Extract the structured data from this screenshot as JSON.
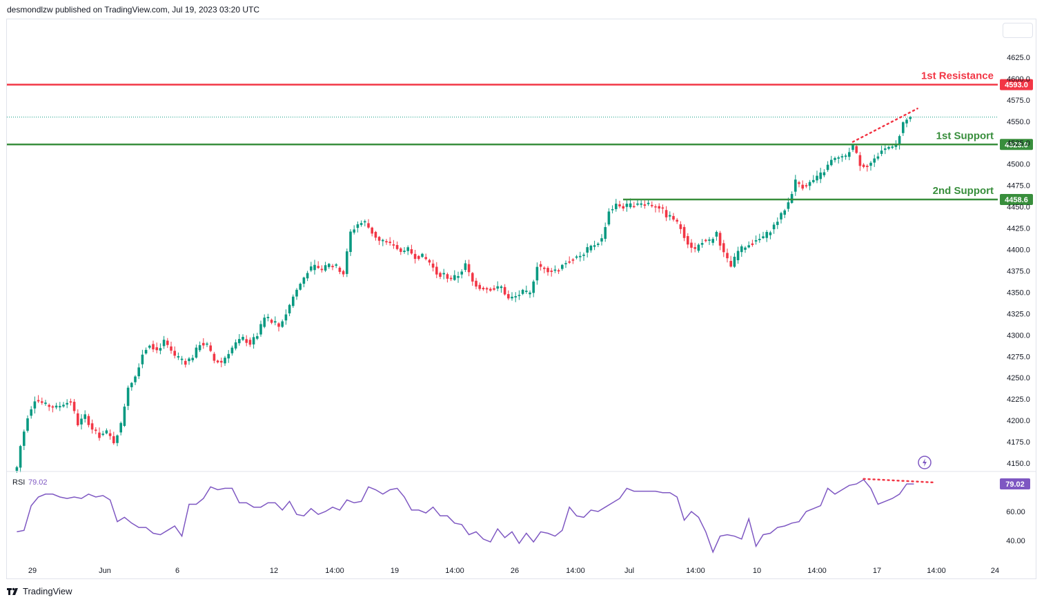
{
  "header": {
    "text": "desmondlzw published on TradingView.com, Jul 19, 2023 03:20 UTC"
  },
  "footer": {
    "brand": "TradingView"
  },
  "chart_data": {
    "type": "candlestick",
    "price_axis": {
      "ticks": [
        "4625.0",
        "4600.0",
        "4575.0",
        "4550.0",
        "4525.0",
        "4500.0",
        "4475.0",
        "4450.0",
        "4425.0",
        "4400.0",
        "4375.0",
        "4350.0",
        "4325.0",
        "4300.0",
        "4275.0",
        "4250.0",
        "4225.0",
        "4200.0",
        "4175.0",
        "4150.0"
      ],
      "range": [
        4142,
        4650
      ]
    },
    "time_axis": {
      "ticks": [
        "29",
        "Jun",
        "6",
        "12",
        "14:00",
        "19",
        "14:00",
        "26",
        "14:00",
        "Jul",
        "14:00",
        "10",
        "14:00",
        "17",
        "14:00",
        "24"
      ]
    },
    "colors": {
      "up": "#089981",
      "down": "#f23645",
      "resistance": "#f23645",
      "support": "#388e3c",
      "rsi": "#7e57c2"
    },
    "levels": [
      {
        "name": "1st Resistance",
        "value": 4593.0,
        "label": "4593.0",
        "color": "#f23645"
      },
      {
        "name": "1st Support",
        "value": 4523.0,
        "label": "4523.0",
        "color": "#388e3c"
      },
      {
        "name": "2nd Support",
        "value": 4458.6,
        "label": "4458.6",
        "color": "#388e3c"
      }
    ],
    "current_price": 4555,
    "candle_anchors": [
      [
        0,
        4145
      ],
      [
        1,
        4170
      ],
      [
        3,
        4205
      ],
      [
        5,
        4225
      ],
      [
        8,
        4218
      ],
      [
        11,
        4215
      ],
      [
        13,
        4220
      ],
      [
        15,
        4222
      ],
      [
        17,
        4196
      ],
      [
        19,
        4205
      ],
      [
        21,
        4190
      ],
      [
        23,
        4182
      ],
      [
        25,
        4186
      ],
      [
        27,
        4175
      ],
      [
        29,
        4195
      ],
      [
        31,
        4240
      ],
      [
        33,
        4252
      ],
      [
        35,
        4278
      ],
      [
        37,
        4290
      ],
      [
        39,
        4282
      ],
      [
        41,
        4292
      ],
      [
        43,
        4280
      ],
      [
        45,
        4270
      ],
      [
        47,
        4268
      ],
      [
        49,
        4275
      ],
      [
        51,
        4290
      ],
      [
        53,
        4288
      ],
      [
        55,
        4270
      ],
      [
        57,
        4268
      ],
      [
        59,
        4280
      ],
      [
        61,
        4290
      ],
      [
        63,
        4296
      ],
      [
        65,
        4290
      ],
      [
        67,
        4300
      ],
      [
        69,
        4320
      ],
      [
        71,
        4315
      ],
      [
        73,
        4310
      ],
      [
        75,
        4325
      ],
      [
        77,
        4345
      ],
      [
        79,
        4360
      ],
      [
        81,
        4375
      ],
      [
        83,
        4380
      ],
      [
        85,
        4376
      ],
      [
        87,
        4382
      ],
      [
        89,
        4380
      ],
      [
        91,
        4372
      ],
      [
        93,
        4420
      ],
      [
        95,
        4430
      ],
      [
        97,
        4432
      ],
      [
        99,
        4420
      ],
      [
        101,
        4410
      ],
      [
        103,
        4408
      ],
      [
        105,
        4405
      ],
      [
        107,
        4398
      ],
      [
        109,
        4400
      ],
      [
        111,
        4392
      ],
      [
        113,
        4392
      ],
      [
        115,
        4385
      ],
      [
        117,
        4372
      ],
      [
        119,
        4370
      ],
      [
        121,
        4365
      ],
      [
        123,
        4370
      ],
      [
        125,
        4382
      ],
      [
        127,
        4362
      ],
      [
        129,
        4356
      ],
      [
        131,
        4355
      ],
      [
        133,
        4354
      ],
      [
        135,
        4356
      ],
      [
        137,
        4342
      ],
      [
        139,
        4345
      ],
      [
        141,
        4350
      ],
      [
        143,
        4348
      ],
      [
        145,
        4382
      ],
      [
        147,
        4378
      ],
      [
        149,
        4375
      ],
      [
        151,
        4378
      ],
      [
        153,
        4385
      ],
      [
        155,
        4390
      ],
      [
        157,
        4392
      ],
      [
        159,
        4400
      ],
      [
        161,
        4406
      ],
      [
        163,
        4412
      ],
      [
        165,
        4445
      ],
      [
        167,
        4452
      ],
      [
        169,
        4450
      ],
      [
        171,
        4452
      ],
      [
        173,
        4453
      ],
      [
        175,
        4454
      ],
      [
        177,
        4452
      ],
      [
        179,
        4450
      ],
      [
        181,
        4440
      ],
      [
        183,
        4436
      ],
      [
        185,
        4425
      ],
      [
        187,
        4408
      ],
      [
        189,
        4400
      ],
      [
        191,
        4410
      ],
      [
        193,
        4408
      ],
      [
        195,
        4420
      ],
      [
        197,
        4395
      ],
      [
        199,
        4380
      ],
      [
        201,
        4398
      ],
      [
        203,
        4404
      ],
      [
        205,
        4408
      ],
      [
        207,
        4412
      ],
      [
        209,
        4418
      ],
      [
        211,
        4428
      ],
      [
        213,
        4440
      ],
      [
        215,
        4455
      ],
      [
        217,
        4480
      ],
      [
        219,
        4474
      ],
      [
        221,
        4478
      ],
      [
        223,
        4484
      ],
      [
        225,
        4492
      ],
      [
        227,
        4504
      ],
      [
        229,
        4507
      ],
      [
        231,
        4510
      ],
      [
        233,
        4522
      ],
      [
        235,
        4500
      ],
      [
        237,
        4498
      ],
      [
        239,
        4505
      ],
      [
        241,
        4516
      ],
      [
        243,
        4520
      ],
      [
        245,
        4522
      ],
      [
        247,
        4548
      ],
      [
        249,
        4555
      ]
    ],
    "rsi": {
      "label": "RSI",
      "value": "79.02",
      "ticks": [
        "60.00",
        "40.00"
      ],
      "range": [
        28,
        88
      ],
      "anchors": [
        [
          0,
          46
        ],
        [
          2,
          47
        ],
        [
          4,
          64
        ],
        [
          6,
          70
        ],
        [
          8,
          72
        ],
        [
          10,
          72
        ],
        [
          12,
          70
        ],
        [
          14,
          69
        ],
        [
          16,
          70
        ],
        [
          18,
          69
        ],
        [
          20,
          72
        ],
        [
          22,
          70
        ],
        [
          24,
          71
        ],
        [
          26,
          68
        ],
        [
          28,
          53
        ],
        [
          30,
          56
        ],
        [
          32,
          52
        ],
        [
          34,
          49
        ],
        [
          36,
          49
        ],
        [
          38,
          45
        ],
        [
          40,
          44
        ],
        [
          42,
          47
        ],
        [
          44,
          50
        ],
        [
          46,
          43
        ],
        [
          48,
          65
        ],
        [
          50,
          65
        ],
        [
          52,
          69
        ],
        [
          54,
          77
        ],
        [
          56,
          75
        ],
        [
          58,
          76
        ],
        [
          60,
          76
        ],
        [
          62,
          66
        ],
        [
          64,
          66
        ],
        [
          66,
          63
        ],
        [
          68,
          63
        ],
        [
          70,
          66
        ],
        [
          72,
          66
        ],
        [
          74,
          61
        ],
        [
          76,
          67
        ],
        [
          78,
          58
        ],
        [
          80,
          57
        ],
        [
          82,
          62
        ],
        [
          84,
          58
        ],
        [
          86,
          60
        ],
        [
          88,
          63
        ],
        [
          90,
          61
        ],
        [
          92,
          68
        ],
        [
          94,
          66
        ],
        [
          96,
          67
        ],
        [
          98,
          77
        ],
        [
          100,
          75
        ],
        [
          102,
          72
        ],
        [
          104,
          75
        ],
        [
          106,
          76
        ],
        [
          108,
          70
        ],
        [
          110,
          61
        ],
        [
          112,
          61
        ],
        [
          114,
          59
        ],
        [
          116,
          63
        ],
        [
          118,
          57
        ],
        [
          120,
          57
        ],
        [
          122,
          52
        ],
        [
          124,
          51
        ],
        [
          126,
          44
        ],
        [
          128,
          46
        ],
        [
          130,
          41
        ],
        [
          132,
          39
        ],
        [
          134,
          48
        ],
        [
          136,
          42
        ],
        [
          138,
          46
        ],
        [
          140,
          38
        ],
        [
          142,
          45
        ],
        [
          144,
          39
        ],
        [
          146,
          46
        ],
        [
          148,
          45
        ],
        [
          150,
          43
        ],
        [
          152,
          47
        ],
        [
          154,
          63
        ],
        [
          156,
          57
        ],
        [
          158,
          56
        ],
        [
          160,
          61
        ],
        [
          162,
          60
        ],
        [
          164,
          63
        ],
        [
          166,
          66
        ],
        [
          168,
          69
        ],
        [
          170,
          76
        ],
        [
          172,
          74
        ],
        [
          174,
          74
        ],
        [
          176,
          74
        ],
        [
          178,
          74
        ],
        [
          180,
          73
        ],
        [
          182,
          73
        ],
        [
          184,
          70
        ],
        [
          186,
          54
        ],
        [
          188,
          60
        ],
        [
          190,
          56
        ],
        [
          192,
          46
        ],
        [
          194,
          32
        ],
        [
          196,
          43
        ],
        [
          198,
          44
        ],
        [
          200,
          43
        ],
        [
          202,
          41
        ],
        [
          204,
          55
        ],
        [
          206,
          36
        ],
        [
          208,
          44
        ],
        [
          210,
          45
        ],
        [
          212,
          49
        ],
        [
          214,
          50
        ],
        [
          216,
          52
        ],
        [
          218,
          53
        ],
        [
          220,
          60
        ],
        [
          222,
          62
        ],
        [
          224,
          64
        ],
        [
          226,
          76
        ],
        [
          228,
          72
        ],
        [
          230,
          75
        ],
        [
          232,
          78
        ],
        [
          234,
          79
        ],
        [
          236,
          82
        ],
        [
          238,
          76
        ],
        [
          240,
          65
        ],
        [
          242,
          67
        ],
        [
          244,
          69
        ],
        [
          246,
          72
        ],
        [
          248,
          79
        ],
        [
          250,
          79
        ]
      ]
    }
  }
}
